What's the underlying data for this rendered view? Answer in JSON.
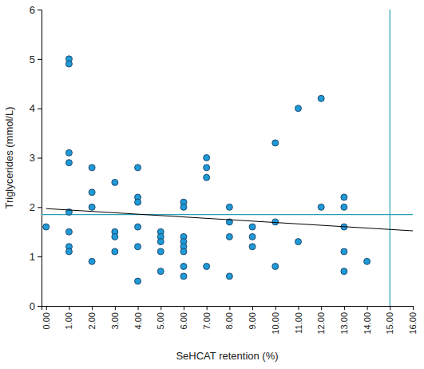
{
  "chart_data": {
    "type": "scatter",
    "x_label": "SeHCAT retention (%)",
    "y_label": "Triglycerides (mmol/L)",
    "xlim": [
      -0.2,
      16
    ],
    "ylim": [
      0,
      6
    ],
    "xticks": [
      {
        "value": 0,
        "label": "0.00"
      },
      {
        "value": 1,
        "label": "1.00"
      },
      {
        "value": 2,
        "label": "2.00"
      },
      {
        "value": 3,
        "label": "3.00"
      },
      {
        "value": 4,
        "label": "4.00"
      },
      {
        "value": 5,
        "label": "5.00"
      },
      {
        "value": 6,
        "label": "6.00"
      },
      {
        "value": 7,
        "label": "7.00"
      },
      {
        "value": 8,
        "label": "8.00"
      },
      {
        "value": 9,
        "label": "9.00"
      },
      {
        "value": 10,
        "label": "10.00"
      },
      {
        "value": 11,
        "label": "11.00"
      },
      {
        "value": 12,
        "label": "12.00"
      },
      {
        "value": 13,
        "label": "13.00"
      },
      {
        "value": 14,
        "label": "14.00"
      },
      {
        "value": 15,
        "label": "15.00"
      },
      {
        "value": 16,
        "label": "16.00"
      }
    ],
    "yticks": [
      0,
      1,
      2,
      3,
      4,
      5,
      6
    ],
    "grid": false,
    "series": [
      {
        "type": "scatter",
        "marker": "circle",
        "color": "#1e9ad6",
        "x": [
          0,
          1,
          1,
          1,
          1,
          1,
          1,
          1,
          1,
          2,
          2,
          2,
          2,
          3,
          3,
          3,
          3,
          4,
          4,
          4,
          4,
          4,
          4,
          5,
          5,
          5,
          5,
          5,
          6,
          6,
          6,
          6,
          6,
          6,
          6,
          6,
          7,
          7,
          7,
          7,
          8,
          8,
          8,
          8,
          9,
          9,
          9,
          10,
          10,
          10,
          11,
          11,
          12,
          12,
          13,
          13,
          13,
          13,
          13,
          14
        ],
        "values": [
          1.6,
          5.0,
          4.9,
          3.1,
          2.9,
          1.9,
          1.5,
          1.2,
          1.1,
          2.8,
          2.3,
          2.0,
          0.9,
          2.5,
          1.5,
          1.4,
          1.1,
          2.8,
          2.2,
          2.1,
          1.6,
          1.2,
          0.5,
          1.5,
          1.4,
          1.3,
          1.1,
          0.7,
          2.1,
          2.0,
          1.4,
          1.3,
          1.2,
          1.1,
          0.8,
          0.6,
          3.0,
          2.8,
          2.6,
          0.8,
          2.0,
          1.7,
          1.4,
          0.6,
          1.6,
          1.4,
          1.2,
          3.3,
          1.7,
          0.8,
          4.0,
          1.3,
          4.2,
          2.0,
          2.2,
          2.0,
          1.6,
          1.1,
          0.7,
          0.9
        ]
      },
      {
        "type": "line",
        "line_style": "solid",
        "color": "#000000",
        "x": [
          0,
          16
        ],
        "values": [
          1.97,
          1.52
        ]
      }
    ],
    "hline": 1.85,
    "vline": 15,
    "reference_color": "#2a9fb8"
  }
}
